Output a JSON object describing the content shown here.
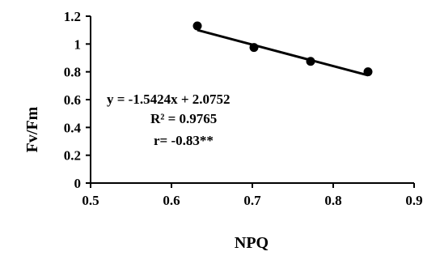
{
  "chart_data": {
    "type": "scatter",
    "xlabel": "NPQ",
    "ylabel": "Fv/Fm",
    "xlim": [
      0.5,
      0.9
    ],
    "ylim": [
      0,
      1.2
    ],
    "xticks": [
      "0.5",
      "0.6",
      "0.7",
      "0.8",
      "0.9"
    ],
    "yticks": [
      "0",
      "0.2",
      "0.4",
      "0.6",
      "0.8",
      "1",
      "1.2"
    ],
    "points": [
      {
        "x": 0.632,
        "y": 1.13
      },
      {
        "x": 0.702,
        "y": 0.975
      },
      {
        "x": 0.772,
        "y": 0.875
      },
      {
        "x": 0.843,
        "y": 0.8
      }
    ],
    "trendline": {
      "slope": -1.5424,
      "intercept": 2.0752,
      "x_range": [
        0.632,
        0.843
      ]
    },
    "annotations": {
      "equation": "y = -1.5424x + 2.0752",
      "r2": "R² = 0.9765",
      "r": "r= -0.83**"
    },
    "grid": false
  }
}
